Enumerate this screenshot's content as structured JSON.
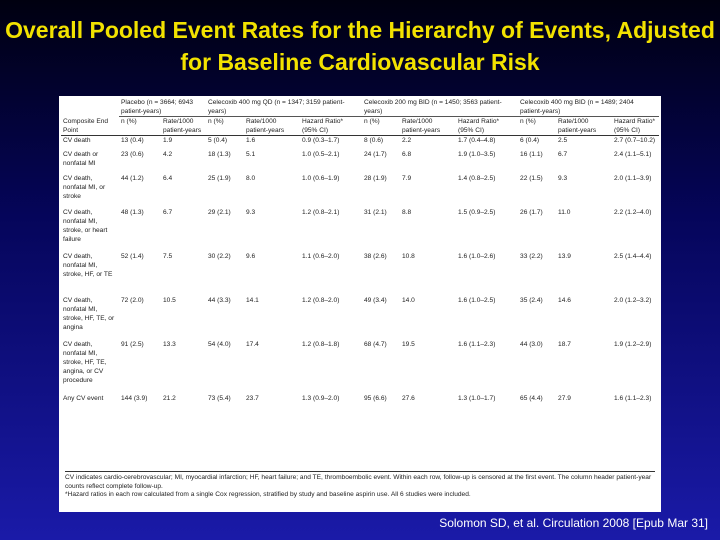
{
  "slide": {
    "title": "Overall Pooled Event Rates for the Hierarchy of Events, Adjusted for Baseline Cardiovascular Risk",
    "citation": "Solomon SD, et al. Circulation 2008 [Epub Mar 31]"
  },
  "table": {
    "groups": [
      "Placebo (n = 3664; 6943 patient-years)",
      "Celecoxib 400 mg QD (n = 1347; 3159 patient-years)",
      "Celecoxib 200 mg BID (n = 1450; 3563 patient-years)",
      "Celecoxib 400 mg BID (n = 1489; 2404 patient-years)"
    ],
    "columns": [
      "Composite End Point",
      "n (%)",
      "Rate/1000 patient-years",
      "n (%)",
      "Rate/1000 patient-years",
      "Hazard Ratio* (95% CI)",
      "n (%)",
      "Rate/1000 patient-years",
      "Hazard Ratio* (95% CI)",
      "n (%)",
      "Rate/1000 patient-years",
      "Hazard Ratio* (95% CI)"
    ],
    "rows": [
      {
        "endpoint": "CV death",
        "cells": [
          "13 (0.4)",
          "1.9",
          "5 (0.4)",
          "1.6",
          "0.9 (0.3–1.7)",
          "8 (0.6)",
          "2.2",
          "1.7 (0.4–4.8)",
          "6 (0.4)",
          "2.5",
          "2.7 (0.7–10.2)"
        ]
      },
      {
        "endpoint": "CV death or nonfatal MI",
        "cells": [
          "23 (0.6)",
          "4.2",
          "18 (1.3)",
          "5.1",
          "1.0 (0.5–2.1)",
          "24 (1.7)",
          "6.8",
          "1.9 (1.0–3.5)",
          "16 (1.1)",
          "6.7",
          "2.4 (1.1–5.1)"
        ]
      },
      {
        "endpoint": "CV death, nonfatal MI, or stroke",
        "cells": [
          "44 (1.2)",
          "6.4",
          "25 (1.9)",
          "8.0",
          "1.0 (0.6–1.9)",
          "28 (1.9)",
          "7.9",
          "1.4 (0.8–2.5)",
          "22 (1.5)",
          "9.3",
          "2.0 (1.1–3.9)"
        ]
      },
      {
        "endpoint": "CV death, nonfatal MI, stroke, or heart failure",
        "cells": [
          "48 (1.3)",
          "6.7",
          "29 (2.1)",
          "9.3",
          "1.2 (0.8–2.1)",
          "31 (2.1)",
          "8.8",
          "1.5 (0.9–2.5)",
          "26 (1.7)",
          "11.0",
          "2.2 (1.2–4.0)"
        ]
      },
      {
        "endpoint": "CV death, nonfatal MI, stroke, HF, or TE",
        "cells": [
          "52 (1.4)",
          "7.5",
          "30 (2.2)",
          "9.6",
          "1.1 (0.6–2.0)",
          "38 (2.6)",
          "10.8",
          "1.6 (1.0–2.6)",
          "33 (2.2)",
          "13.9",
          "2.5 (1.4–4.4)"
        ]
      },
      {
        "endpoint": "CV death, nonfatal MI, stroke, HF, TE, or angina",
        "cells": [
          "72 (2.0)",
          "10.5",
          "44 (3.3)",
          "14.1",
          "1.2 (0.8–2.0)",
          "49 (3.4)",
          "14.0",
          "1.6 (1.0–2.5)",
          "35 (2.4)",
          "14.6",
          "2.0 (1.2–3.2)"
        ]
      },
      {
        "endpoint": "CV death, nonfatal MI, stroke, HF, TE, angina, or CV procedure",
        "cells": [
          "91 (2.5)",
          "13.3",
          "54 (4.0)",
          "17.4",
          "1.2 (0.8–1.8)",
          "68 (4.7)",
          "19.5",
          "1.6 (1.1–2.3)",
          "44 (3.0)",
          "18.7",
          "1.9 (1.2–2.9)"
        ]
      },
      {
        "endpoint": "Any CV event",
        "cells": [
          "144 (3.9)",
          "21.2",
          "73 (5.4)",
          "23.7",
          "1.3 (0.9–2.0)",
          "95 (6.6)",
          "27.6",
          "1.3 (1.0–1.7)",
          "65 (4.4)",
          "27.9",
          "1.6 (1.1–2.3)"
        ]
      }
    ],
    "footnote_1": "CV indicates cardio-cerebrovascular; MI, myocardial infarction; HF, heart failure; and TE, thromboembolic event. Within each row, follow-up is censored at the first event. The column header patient-year counts reflect complete follow-up.",
    "footnote_2": "*Hazard ratios in each row calculated from a single Cox regression, stratified by study and baseline aspirin use. All 6 studies were included."
  }
}
